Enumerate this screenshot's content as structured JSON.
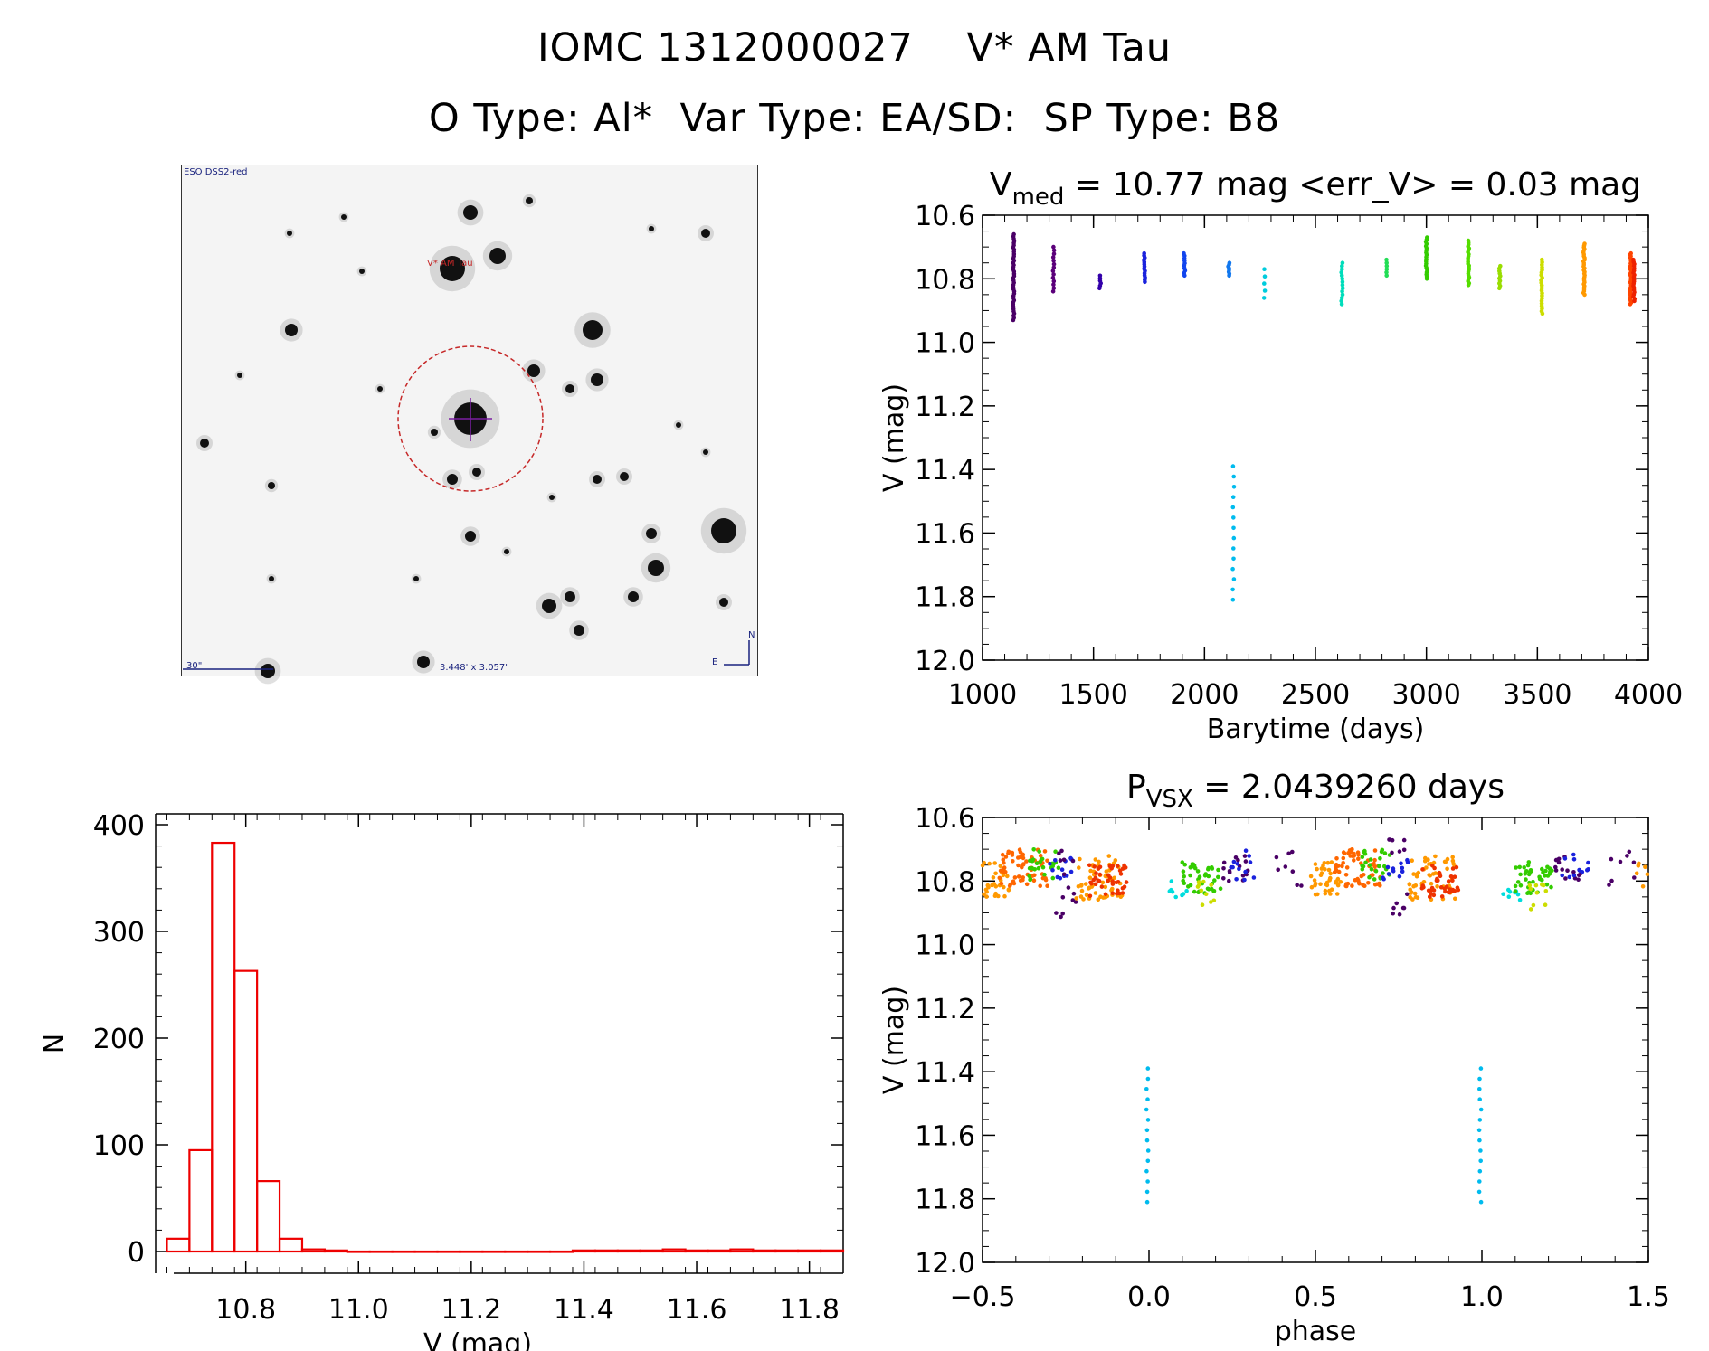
{
  "header": {
    "title_line1": "IOMC 1312000027    V* AM Tau",
    "title_line2": "O Type: Al*  Var Type: EA/SD:  SP Type: B8"
  },
  "sky_image": {
    "survey_label": "ESO DSS2-red",
    "target_label": "V* AM Tau",
    "scale_label": "30\"",
    "fov_label": "3.448' x 3.057'",
    "north_label": "N",
    "east_label": "E"
  },
  "colors": {
    "histogram": "#ee0000",
    "axes": "#000000",
    "circle": "#c62828",
    "crosshair": "#7b1fa2"
  },
  "chart_data": [
    {
      "id": "lightcurve",
      "type": "scatter",
      "title_main": "V",
      "title_sub": "med",
      "title_rest": " = 10.77 mag <err_V> = 0.03 mag",
      "xlabel": "Barytime (days)",
      "ylabel": "V (mag)",
      "xlim": [
        1000,
        4000
      ],
      "ylim": [
        12.0,
        10.6
      ],
      "xticks": [
        "1000",
        "1500",
        "2000",
        "2500",
        "3000",
        "3500",
        "4000"
      ],
      "yticks": [
        "10.6",
        "10.8",
        "11.0",
        "11.2",
        "11.4",
        "11.6",
        "11.8",
        "12.0"
      ],
      "groups": [
        {
          "x": 1140,
          "min": 10.66,
          "max": 10.93,
          "n": 40,
          "color": "#4a0066"
        },
        {
          "x": 1320,
          "min": 10.7,
          "max": 10.84,
          "n": 14,
          "color": "#5b007a"
        },
        {
          "x": 1530,
          "min": 10.79,
          "max": 10.83,
          "n": 6,
          "color": "#3300aa"
        },
        {
          "x": 1730,
          "min": 10.72,
          "max": 10.81,
          "n": 14,
          "color": "#1a22dd"
        },
        {
          "x": 1910,
          "min": 10.72,
          "max": 10.79,
          "n": 10,
          "color": "#1144ee"
        },
        {
          "x": 2110,
          "min": 10.75,
          "max": 10.79,
          "n": 8,
          "color": "#1177ee"
        },
        {
          "x": 2130,
          "min": 11.39,
          "max": 11.81,
          "n": 14,
          "color": "#00bbee"
        },
        {
          "x": 2270,
          "min": 10.77,
          "max": 10.86,
          "n": 5,
          "color": "#00ccdd"
        },
        {
          "x": 2620,
          "min": 10.75,
          "max": 10.88,
          "n": 14,
          "color": "#00ddbb"
        },
        {
          "x": 2820,
          "min": 10.74,
          "max": 10.79,
          "n": 6,
          "color": "#22dd55"
        },
        {
          "x": 3000,
          "min": 10.67,
          "max": 10.8,
          "n": 20,
          "color": "#33cc00"
        },
        {
          "x": 3190,
          "min": 10.68,
          "max": 10.82,
          "n": 24,
          "color": "#55dd00"
        },
        {
          "x": 3330,
          "min": 10.76,
          "max": 10.83,
          "n": 10,
          "color": "#99dd00"
        },
        {
          "x": 3520,
          "min": 10.74,
          "max": 10.91,
          "n": 22,
          "color": "#ccdd00"
        },
        {
          "x": 3710,
          "min": 10.69,
          "max": 10.85,
          "n": 30,
          "color": "#ff9900"
        },
        {
          "x": 3920,
          "min": 10.72,
          "max": 10.88,
          "n": 36,
          "color": "#ff4400"
        },
        {
          "x": 3935,
          "min": 10.74,
          "max": 10.87,
          "n": 20,
          "color": "#ee2200"
        }
      ]
    },
    {
      "id": "histogram",
      "type": "bar",
      "xlabel": "V (mag)",
      "ylabel": "N",
      "xlim": [
        10.64,
        11.86
      ],
      "ylim": [
        0,
        400
      ],
      "bin_width": 0.04,
      "bin_starts": [
        10.66,
        10.7,
        10.74,
        10.78,
        10.82,
        10.86,
        10.9,
        10.94,
        10.98,
        11.02,
        11.06,
        11.1,
        11.14,
        11.18,
        11.22,
        11.26,
        11.3,
        11.34,
        11.38,
        11.42,
        11.46,
        11.5,
        11.54,
        11.58,
        11.62,
        11.66,
        11.7,
        11.74,
        11.78,
        11.82
      ],
      "counts": [
        12,
        95,
        383,
        263,
        66,
        12,
        2,
        1,
        0,
        0,
        0,
        0,
        0,
        0,
        0,
        0,
        0,
        0,
        1,
        1,
        1,
        1,
        2,
        1,
        1,
        2,
        1,
        1,
        1,
        1
      ],
      "xticks": [
        "10.8",
        "11.0",
        "11.2",
        "11.4",
        "11.6",
        "11.8"
      ],
      "yticks": [
        "0",
        "100",
        "200",
        "300",
        "400"
      ]
    },
    {
      "id": "phased",
      "type": "scatter",
      "title_main": "P",
      "title_sub": "VSX",
      "title_rest": " = 2.0439260 days",
      "xlabel": "phase",
      "ylabel": "V (mag)",
      "xlim": [
        -0.5,
        1.5
      ],
      "ylim": [
        12.0,
        10.6
      ],
      "xticks": [
        "−0.5",
        "0.0",
        "0.5",
        "1.0",
        "1.5"
      ],
      "yticks": [
        "10.6",
        "10.8",
        "11.0",
        "11.2",
        "11.4",
        "11.6",
        "11.8",
        "12.0"
      ],
      "clusters": [
        {
          "x0": -0.5,
          "x1": -0.42,
          "ymin": 10.74,
          "ymax": 10.85,
          "n": 30,
          "color": "#ff9900"
        },
        {
          "x0": -0.45,
          "x1": -0.3,
          "ymin": 10.7,
          "ymax": 10.82,
          "n": 60,
          "color": "#ff6600"
        },
        {
          "x0": -0.36,
          "x1": -0.27,
          "ymin": 10.7,
          "ymax": 10.8,
          "n": 25,
          "color": "#33cc00"
        },
        {
          "x0": -0.3,
          "x1": -0.22,
          "ymin": 10.72,
          "ymax": 10.8,
          "n": 12,
          "color": "#1a22dd"
        },
        {
          "x0": -0.28,
          "x1": -0.22,
          "ymin": 10.66,
          "ymax": 10.93,
          "n": 14,
          "color": "#4a0066"
        },
        {
          "x0": -0.22,
          "x1": -0.08,
          "ymin": 10.72,
          "ymax": 10.86,
          "n": 55,
          "color": "#ff9900"
        },
        {
          "x0": -0.18,
          "x1": -0.06,
          "ymin": 10.75,
          "ymax": 10.85,
          "n": 40,
          "color": "#ee3300"
        },
        {
          "x0": 0.06,
          "x1": 0.12,
          "ymin": 10.8,
          "ymax": 10.86,
          "n": 8,
          "color": "#00dddd"
        },
        {
          "x0": 0.1,
          "x1": 0.22,
          "ymin": 10.74,
          "ymax": 10.84,
          "n": 40,
          "color": "#33cc00"
        },
        {
          "x0": 0.14,
          "x1": 0.2,
          "ymin": 10.8,
          "ymax": 10.9,
          "n": 10,
          "color": "#ccdd00"
        },
        {
          "x0": 0.22,
          "x1": 0.3,
          "ymin": 10.72,
          "ymax": 10.8,
          "n": 15,
          "color": "#4a0066"
        },
        {
          "x0": 0.24,
          "x1": 0.32,
          "ymin": 10.7,
          "ymax": 10.8,
          "n": 12,
          "color": "#1a22dd"
        },
        {
          "x0": 0.38,
          "x1": 0.46,
          "ymin": 10.7,
          "ymax": 10.82,
          "n": 8,
          "color": "#4a0066"
        },
        {
          "x0": 0.46,
          "x1": 0.52,
          "ymin": 10.74,
          "ymax": 10.85,
          "n": 8,
          "color": "#ff9900"
        },
        {
          "x0": 0.5,
          "x1": 0.58,
          "ymin": 10.74,
          "ymax": 10.85,
          "n": 30,
          "color": "#ff9900"
        },
        {
          "x0": 0.55,
          "x1": 0.7,
          "ymin": 10.7,
          "ymax": 10.82,
          "n": 60,
          "color": "#ff6600"
        },
        {
          "x0": 0.64,
          "x1": 0.73,
          "ymin": 10.7,
          "ymax": 10.8,
          "n": 25,
          "color": "#33cc00"
        },
        {
          "x0": 0.7,
          "x1": 0.78,
          "ymin": 10.72,
          "ymax": 10.8,
          "n": 12,
          "color": "#1a22dd"
        },
        {
          "x0": 0.72,
          "x1": 0.78,
          "ymin": 10.66,
          "ymax": 10.93,
          "n": 14,
          "color": "#4a0066"
        },
        {
          "x0": 0.78,
          "x1": 0.92,
          "ymin": 10.72,
          "ymax": 10.86,
          "n": 55,
          "color": "#ff9900"
        },
        {
          "x0": 0.82,
          "x1": 0.94,
          "ymin": 10.75,
          "ymax": 10.85,
          "n": 40,
          "color": "#ee3300"
        },
        {
          "x0": 1.06,
          "x1": 1.12,
          "ymin": 10.8,
          "ymax": 10.86,
          "n": 8,
          "color": "#00dddd"
        },
        {
          "x0": 1.1,
          "x1": 1.22,
          "ymin": 10.74,
          "ymax": 10.84,
          "n": 40,
          "color": "#33cc00"
        },
        {
          "x0": 1.14,
          "x1": 1.2,
          "ymin": 10.8,
          "ymax": 10.9,
          "n": 10,
          "color": "#ccdd00"
        },
        {
          "x0": 1.22,
          "x1": 1.3,
          "ymin": 10.72,
          "ymax": 10.8,
          "n": 15,
          "color": "#4a0066"
        },
        {
          "x0": 1.24,
          "x1": 1.32,
          "ymin": 10.7,
          "ymax": 10.8,
          "n": 12,
          "color": "#1a22dd"
        },
        {
          "x0": 1.38,
          "x1": 1.46,
          "ymin": 10.7,
          "ymax": 10.82,
          "n": 8,
          "color": "#4a0066"
        },
        {
          "x0": 1.46,
          "x1": 1.5,
          "ymin": 10.74,
          "ymax": 10.82,
          "n": 6,
          "color": "#ff9900"
        }
      ],
      "eclipse_columns": [
        {
          "x": -0.005,
          "ymin": 11.39,
          "ymax": 11.81,
          "n": 14,
          "color": "#00bbee"
        },
        {
          "x": 0.995,
          "ymin": 11.39,
          "ymax": 11.81,
          "n": 14,
          "color": "#00bbee"
        }
      ]
    }
  ]
}
